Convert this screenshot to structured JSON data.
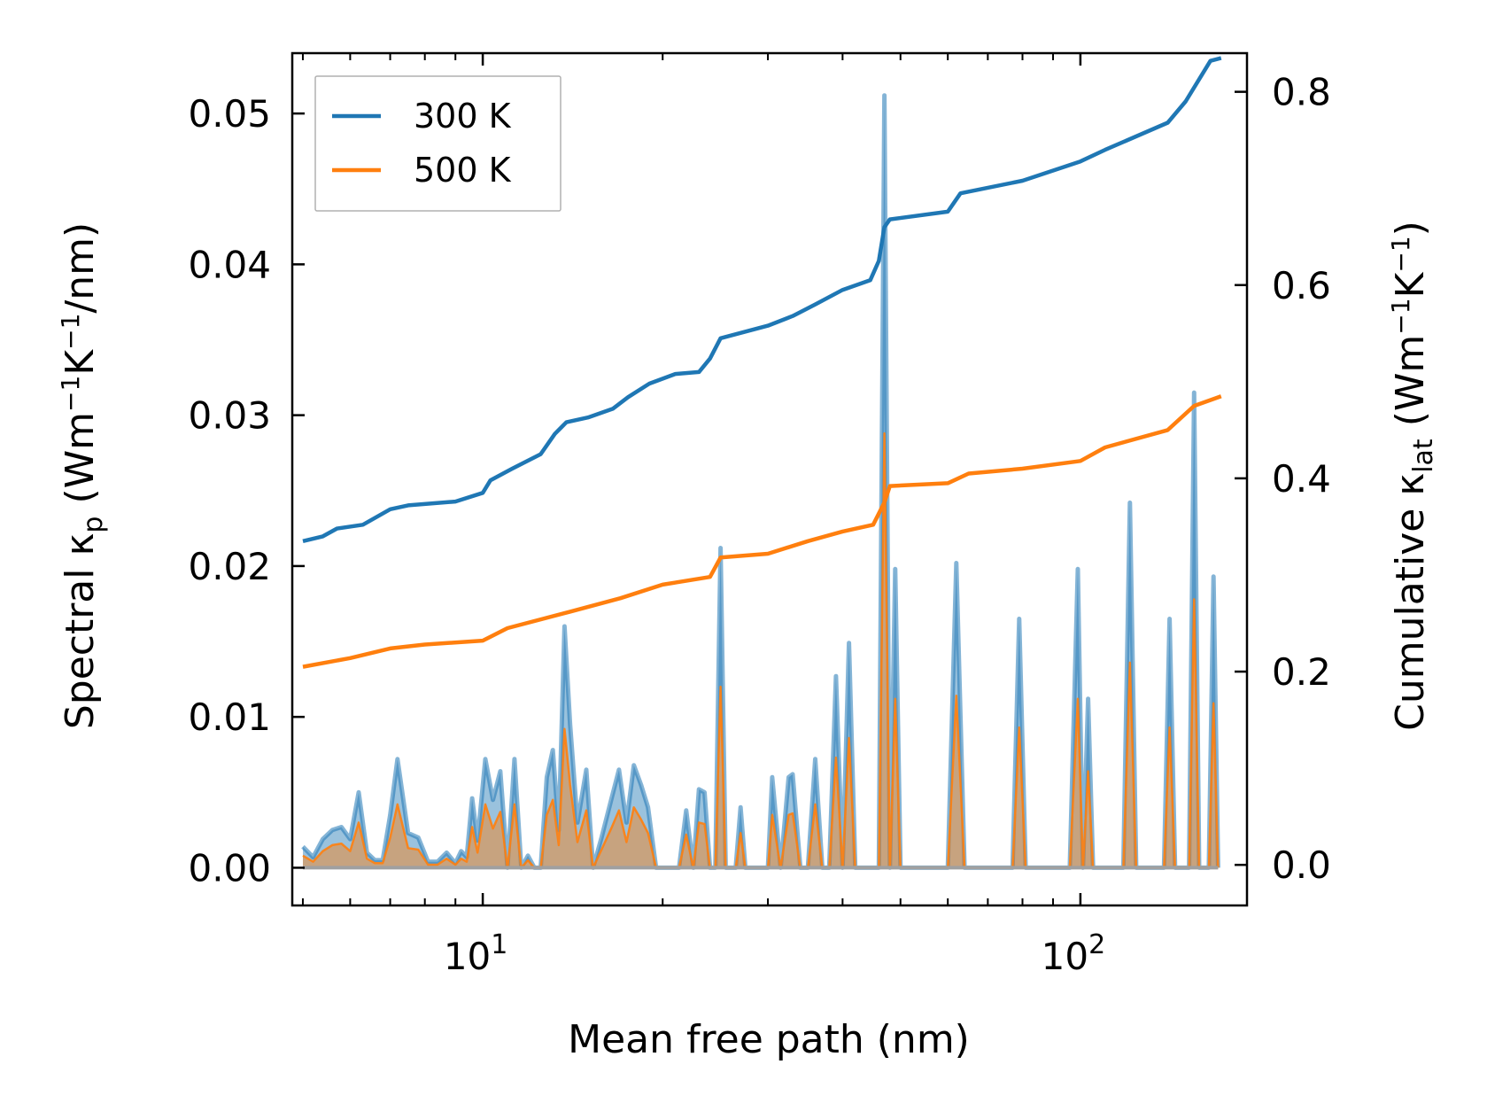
{
  "chart_data": {
    "type": "line",
    "x_scale": "log",
    "xlabel": "Mean free path (nm)",
    "ylabel_left": {
      "main": "Spectral κ",
      "sub": "p",
      "unit_pre": " (Wm",
      "exp1": "−1",
      "mid": "K",
      "exp2": "−1",
      "post": "/nm)"
    },
    "ylabel_right": {
      "main": "Cumulative κ",
      "sub": "lat",
      "unit_pre": " (Wm",
      "exp1": "−1",
      "mid": "K",
      "exp2": "−1",
      "post": ")"
    },
    "xlim": [
      4.8,
      190
    ],
    "ylim_left": [
      -0.0025,
      0.054
    ],
    "ylim_right": [
      -0.042,
      0.84
    ],
    "x_ticks": [
      {
        "value": 10,
        "base": "10",
        "exp": "1"
      },
      {
        "value": 100,
        "base": "10",
        "exp": "2"
      }
    ],
    "y_ticks_left": [
      "0.00",
      "0.01",
      "0.02",
      "0.03",
      "0.04",
      "0.05"
    ],
    "y_ticks_right": [
      "0.0",
      "0.2",
      "0.4",
      "0.6",
      "0.8"
    ],
    "colors": {
      "s300": "#1f77b4",
      "s500": "#ff7f0e",
      "fill300": "#1f77b4",
      "fill500": "#ff7f0e"
    },
    "legend": [
      {
        "name": "300 K",
        "color": "#1f77b4"
      },
      {
        "name": "500 K",
        "color": "#ff7f0e"
      }
    ],
    "cumulative": [
      {
        "name": "300 K",
        "color": "#1f77b4",
        "points": [
          [
            5.0,
            0.335
          ],
          [
            5.4,
            0.34
          ],
          [
            5.7,
            0.348
          ],
          [
            6.3,
            0.352
          ],
          [
            7.0,
            0.368
          ],
          [
            7.5,
            0.372
          ],
          [
            9.0,
            0.376
          ],
          [
            10.0,
            0.385
          ],
          [
            10.3,
            0.398
          ],
          [
            11.2,
            0.41
          ],
          [
            12.5,
            0.425
          ],
          [
            13.2,
            0.446
          ],
          [
            13.8,
            0.458
          ],
          [
            15.0,
            0.463
          ],
          [
            16.5,
            0.472
          ],
          [
            17.5,
            0.484
          ],
          [
            19.0,
            0.498
          ],
          [
            21.0,
            0.508
          ],
          [
            23.0,
            0.51
          ],
          [
            24.0,
            0.524
          ],
          [
            25.0,
            0.545
          ],
          [
            30.0,
            0.558
          ],
          [
            33.0,
            0.568
          ],
          [
            36.0,
            0.58
          ],
          [
            40.0,
            0.595
          ],
          [
            44.5,
            0.605
          ],
          [
            46.0,
            0.625
          ],
          [
            47.0,
            0.66
          ],
          [
            48.0,
            0.668
          ],
          [
            60.0,
            0.676
          ],
          [
            63.0,
            0.695
          ],
          [
            80.0,
            0.708
          ],
          [
            100.0,
            0.728
          ],
          [
            110.0,
            0.74
          ],
          [
            140.0,
            0.768
          ],
          [
            150.0,
            0.79
          ],
          [
            165.0,
            0.832
          ],
          [
            172.0,
            0.835
          ]
        ]
      },
      {
        "name": "500 K",
        "color": "#ff7f0e",
        "points": [
          [
            5.0,
            0.205
          ],
          [
            6.0,
            0.214
          ],
          [
            7.0,
            0.224
          ],
          [
            8.0,
            0.228
          ],
          [
            10.0,
            0.232
          ],
          [
            11.0,
            0.245
          ],
          [
            14.0,
            0.262
          ],
          [
            17.0,
            0.276
          ],
          [
            20.0,
            0.29
          ],
          [
            24.0,
            0.298
          ],
          [
            25.0,
            0.318
          ],
          [
            30.0,
            0.322
          ],
          [
            35.0,
            0.335
          ],
          [
            40.0,
            0.345
          ],
          [
            45.0,
            0.352
          ],
          [
            47.0,
            0.375
          ],
          [
            48.0,
            0.392
          ],
          [
            60.0,
            0.395
          ],
          [
            65.0,
            0.405
          ],
          [
            80.0,
            0.41
          ],
          [
            100.0,
            0.418
          ],
          [
            110.0,
            0.432
          ],
          [
            140.0,
            0.45
          ],
          [
            155.0,
            0.475
          ],
          [
            172.0,
            0.485
          ]
        ]
      }
    ],
    "spectral": [
      {
        "name": "300 K",
        "color": "#1f77b4",
        "points": [
          [
            5.0,
            0.0014
          ],
          [
            5.2,
            0.0007
          ],
          [
            5.4,
            0.0019
          ],
          [
            5.6,
            0.0025
          ],
          [
            5.8,
            0.0027
          ],
          [
            6.0,
            0.0019
          ],
          [
            6.2,
            0.005
          ],
          [
            6.4,
            0.001
          ],
          [
            6.6,
            0.0005
          ],
          [
            6.8,
            0.0005
          ],
          [
            7.0,
            0.0035
          ],
          [
            7.2,
            0.0072
          ],
          [
            7.5,
            0.0023
          ],
          [
            7.8,
            0.002
          ],
          [
            8.1,
            0.0004
          ],
          [
            8.4,
            0.0004
          ],
          [
            8.7,
            0.001
          ],
          [
            9.0,
            0.0003
          ],
          [
            9.2,
            0.0011
          ],
          [
            9.4,
            0.0007
          ],
          [
            9.6,
            0.0046
          ],
          [
            9.8,
            0.0018
          ],
          [
            10.1,
            0.0072
          ],
          [
            10.4,
            0.0045
          ],
          [
            10.7,
            0.0064
          ],
          [
            11.0,
            0.0
          ],
          [
            11.3,
            0.0072
          ],
          [
            11.6,
            0.0
          ],
          [
            11.9,
            0.0008
          ],
          [
            12.2,
            0.0
          ],
          [
            12.5,
            0.0
          ],
          [
            12.8,
            0.006
          ],
          [
            13.1,
            0.0078
          ],
          [
            13.4,
            0.0025
          ],
          [
            13.7,
            0.016
          ],
          [
            14.0,
            0.0095
          ],
          [
            14.4,
            0.003
          ],
          [
            14.9,
            0.0065
          ],
          [
            15.3,
            0.0
          ],
          [
            15.8,
            0.002
          ],
          [
            16.4,
            0.0045
          ],
          [
            16.9,
            0.0065
          ],
          [
            17.4,
            0.003
          ],
          [
            17.9,
            0.0068
          ],
          [
            18.4,
            0.0055
          ],
          [
            18.9,
            0.004
          ],
          [
            19.5,
            0.0
          ],
          [
            20.0,
            0.0
          ],
          [
            21.3,
            0.0
          ],
          [
            21.9,
            0.0038
          ],
          [
            22.5,
            0.0
          ],
          [
            23.0,
            0.0052
          ],
          [
            23.5,
            0.005
          ],
          [
            24.0,
            0.0
          ],
          [
            24.5,
            0.0
          ],
          [
            25.0,
            0.0212
          ],
          [
            25.5,
            0.0
          ],
          [
            26.5,
            0.0
          ],
          [
            27.0,
            0.004
          ],
          [
            27.5,
            0.0
          ],
          [
            30.0,
            0.0
          ],
          [
            30.5,
            0.006
          ],
          [
            31.5,
            0.0
          ],
          [
            32.5,
            0.006
          ],
          [
            33.0,
            0.0062
          ],
          [
            34.0,
            0.0
          ],
          [
            35.0,
            0.0
          ],
          [
            36.0,
            0.0072
          ],
          [
            37.0,
            0.0
          ],
          [
            38.0,
            0.0
          ],
          [
            39.0,
            0.0127
          ],
          [
            40.0,
            0.0
          ],
          [
            41.0,
            0.0149
          ],
          [
            42.0,
            0.0
          ],
          [
            44.0,
            0.0
          ],
          [
            46.0,
            0.0
          ],
          [
            47.0,
            0.0512
          ],
          [
            48.0,
            0.0
          ],
          [
            49.0,
            0.0198
          ],
          [
            50.0,
            0.0
          ],
          [
            60.0,
            0.0
          ],
          [
            62.0,
            0.0202
          ],
          [
            64.0,
            0.0
          ],
          [
            77.0,
            0.0
          ],
          [
            79.0,
            0.0165
          ],
          [
            81.0,
            0.0
          ],
          [
            96.0,
            0.0
          ],
          [
            99.0,
            0.0198
          ],
          [
            101.0,
            0.0
          ],
          [
            103.0,
            0.0112
          ],
          [
            105.0,
            0.0
          ],
          [
            118.0,
            0.0
          ],
          [
            121.0,
            0.0242
          ],
          [
            124.0,
            0.0
          ],
          [
            138.0,
            0.0
          ],
          [
            141.0,
            0.0165
          ],
          [
            144.0,
            0.0
          ],
          [
            152.0,
            0.0
          ],
          [
            155.0,
            0.0315
          ],
          [
            158.0,
            0.0
          ],
          [
            164.0,
            0.0
          ],
          [
            167.0,
            0.0193
          ],
          [
            170.0,
            0.0
          ]
        ]
      },
      {
        "name": "500 K",
        "color": "#ff7f0e",
        "points": [
          [
            5.0,
            0.0008
          ],
          [
            5.2,
            0.0004
          ],
          [
            5.4,
            0.0011
          ],
          [
            5.6,
            0.0015
          ],
          [
            5.8,
            0.0016
          ],
          [
            6.0,
            0.0011
          ],
          [
            6.2,
            0.003
          ],
          [
            6.4,
            0.0006
          ],
          [
            6.6,
            0.0003
          ],
          [
            6.8,
            0.0003
          ],
          [
            7.0,
            0.002
          ],
          [
            7.2,
            0.0042
          ],
          [
            7.5,
            0.0013
          ],
          [
            7.8,
            0.0012
          ],
          [
            8.1,
            0.0002
          ],
          [
            8.4,
            0.0002
          ],
          [
            8.7,
            0.0006
          ],
          [
            9.0,
            0.0002
          ],
          [
            9.2,
            0.0006
          ],
          [
            9.4,
            0.0004
          ],
          [
            9.6,
            0.0027
          ],
          [
            9.8,
            0.001
          ],
          [
            10.1,
            0.0042
          ],
          [
            10.4,
            0.0026
          ],
          [
            10.7,
            0.0037
          ],
          [
            11.0,
            0.0
          ],
          [
            11.3,
            0.0042
          ],
          [
            11.6,
            0.0
          ],
          [
            11.9,
            0.0005
          ],
          [
            12.2,
            0.0
          ],
          [
            12.5,
            0.0
          ],
          [
            12.8,
            0.0035
          ],
          [
            13.1,
            0.0045
          ],
          [
            13.4,
            0.0015
          ],
          [
            13.7,
            0.0092
          ],
          [
            14.0,
            0.0055
          ],
          [
            14.4,
            0.0017
          ],
          [
            14.9,
            0.0038
          ],
          [
            15.3,
            0.0
          ],
          [
            15.8,
            0.0012
          ],
          [
            16.4,
            0.0026
          ],
          [
            16.9,
            0.0038
          ],
          [
            17.4,
            0.0017
          ],
          [
            17.9,
            0.004
          ],
          [
            18.4,
            0.0032
          ],
          [
            18.9,
            0.0023
          ],
          [
            19.5,
            0.0
          ],
          [
            20.0,
            0.0
          ],
          [
            21.3,
            0.0
          ],
          [
            21.9,
            0.0022
          ],
          [
            22.5,
            0.0
          ],
          [
            23.0,
            0.003
          ],
          [
            23.5,
            0.0029
          ],
          [
            24.0,
            0.0
          ],
          [
            24.5,
            0.0
          ],
          [
            25.0,
            0.012
          ],
          [
            25.5,
            0.0
          ],
          [
            26.5,
            0.0
          ],
          [
            27.0,
            0.0023
          ],
          [
            27.5,
            0.0
          ],
          [
            30.0,
            0.0
          ],
          [
            30.5,
            0.0035
          ],
          [
            31.5,
            0.0
          ],
          [
            32.5,
            0.0035
          ],
          [
            33.0,
            0.0036
          ],
          [
            34.0,
            0.0
          ],
          [
            35.0,
            0.0
          ],
          [
            36.0,
            0.0042
          ],
          [
            37.0,
            0.0
          ],
          [
            38.0,
            0.0
          ],
          [
            39.0,
            0.0073
          ],
          [
            40.0,
            0.0
          ],
          [
            41.0,
            0.0086
          ],
          [
            42.0,
            0.0
          ],
          [
            44.0,
            0.0
          ],
          [
            46.0,
            0.0
          ],
          [
            47.0,
            0.0288
          ],
          [
            48.0,
            0.0
          ],
          [
            49.0,
            0.0112
          ],
          [
            50.0,
            0.0
          ],
          [
            60.0,
            0.0
          ],
          [
            62.0,
            0.0114
          ],
          [
            64.0,
            0.0
          ],
          [
            77.0,
            0.0
          ],
          [
            79.0,
            0.0093
          ],
          [
            81.0,
            0.0
          ],
          [
            96.0,
            0.0
          ],
          [
            99.0,
            0.0112
          ],
          [
            101.0,
            0.0
          ],
          [
            103.0,
            0.0064
          ],
          [
            105.0,
            0.0
          ],
          [
            118.0,
            0.0
          ],
          [
            121.0,
            0.0136
          ],
          [
            124.0,
            0.0
          ],
          [
            138.0,
            0.0
          ],
          [
            141.0,
            0.0093
          ],
          [
            144.0,
            0.0
          ],
          [
            152.0,
            0.0
          ],
          [
            155.0,
            0.0178
          ],
          [
            158.0,
            0.0
          ],
          [
            164.0,
            0.0
          ],
          [
            167.0,
            0.0109
          ],
          [
            170.0,
            0.0
          ]
        ]
      }
    ]
  }
}
